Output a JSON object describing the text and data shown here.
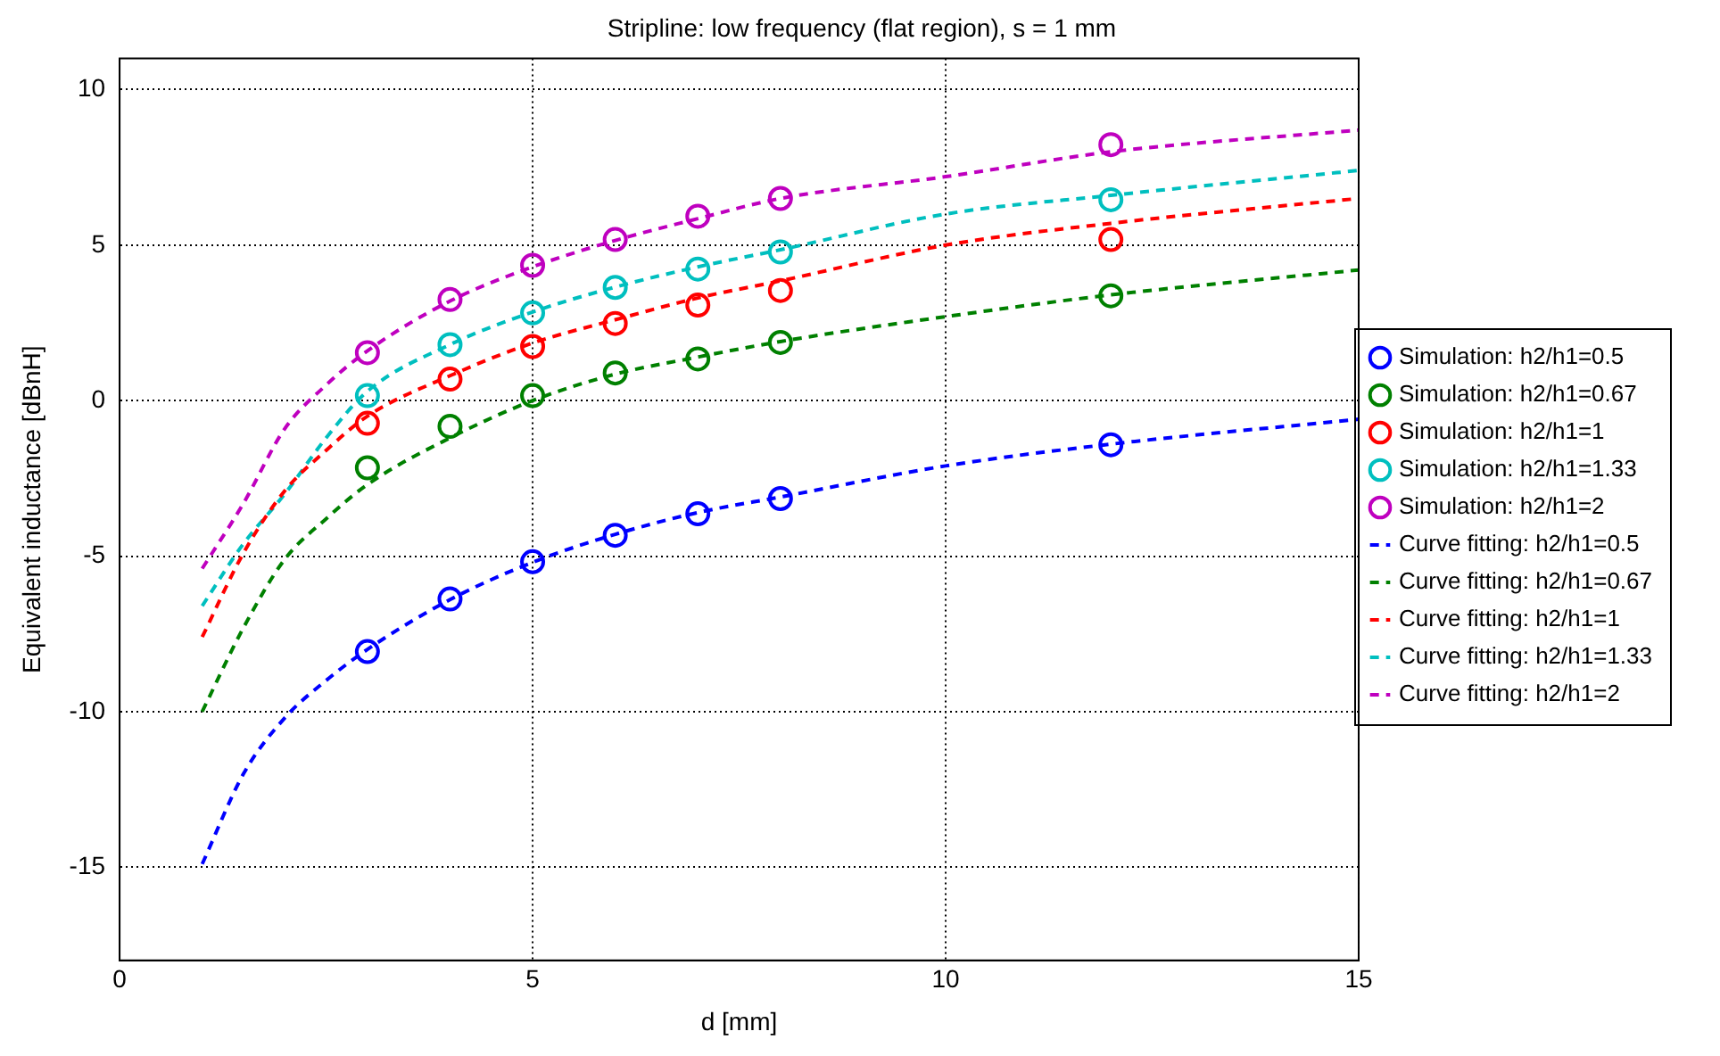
{
  "chart_data": {
    "type": "line",
    "title": "Stripline: low frequency (flat region), s = 1 mm",
    "xlabel": "d [mm]",
    "ylabel": "Equivalent inductance [dBnH]",
    "xlim": [
      0,
      15
    ],
    "xticks": [
      0,
      5,
      10,
      15
    ],
    "ylim": [
      -18,
      11
    ],
    "yticks": [
      -15,
      -10,
      -5,
      0,
      5,
      10
    ],
    "grid": true,
    "legend": "right",
    "series": [
      {
        "name": "Simulation: h2/h1=0.5",
        "type": "scatter",
        "marker": "circle",
        "color": "#0000ff",
        "x": [
          3,
          4,
          5,
          6,
          7,
          8,
          12
        ],
        "values": [
          -8.07,
          -6.38,
          -5.18,
          -4.33,
          -3.64,
          -3.15,
          -1.42
        ]
      },
      {
        "name": "Simulation: h2/h1=0.67",
        "type": "scatter",
        "marker": "circle",
        "color": "#008000",
        "x": [
          3,
          4,
          5,
          6,
          7,
          8,
          12
        ],
        "values": [
          -2.16,
          -0.83,
          0.16,
          0.89,
          1.34,
          1.87,
          3.37
        ]
      },
      {
        "name": "Simulation: h2/h1=1",
        "type": "scatter",
        "marker": "circle",
        "color": "#ff0000",
        "x": [
          3,
          4,
          5,
          6,
          7,
          8,
          12
        ],
        "values": [
          -0.73,
          0.69,
          1.74,
          2.48,
          3.07,
          3.54,
          5.18
        ]
      },
      {
        "name": "Simulation: h2/h1=1.33",
        "type": "scatter",
        "marker": "circle",
        "color": "#00bfbf",
        "x": [
          3,
          4,
          5,
          6,
          7,
          8,
          12
        ],
        "values": [
          0.16,
          1.8,
          2.82,
          3.64,
          4.23,
          4.78,
          6.46
        ]
      },
      {
        "name": "Simulation: h2/h1=2",
        "type": "scatter",
        "marker": "circle",
        "color": "#bf00bf",
        "x": [
          3,
          4,
          5,
          6,
          7,
          8,
          12
        ],
        "values": [
          1.54,
          3.25,
          4.35,
          5.18,
          5.93,
          6.5,
          8.23
        ]
      },
      {
        "name": "Curve fitting: h2/h1=0.5",
        "line_style": "dashed",
        "marker": "none",
        "color": "#0000ff",
        "x": [
          1,
          1.5,
          2,
          2.5,
          3,
          4,
          5,
          6,
          7,
          8,
          10,
          12,
          15
        ],
        "values": [
          -14.9,
          -12.0,
          -10.2,
          -9.0,
          -8.0,
          -6.4,
          -5.2,
          -4.3,
          -3.6,
          -3.1,
          -2.1,
          -1.4,
          -0.6
        ]
      },
      {
        "name": "Curve fitting: h2/h1=0.67",
        "line_style": "dashed",
        "marker": "none",
        "color": "#008000",
        "x": [
          1,
          1.5,
          2,
          2.5,
          3,
          4,
          5,
          6,
          7,
          8,
          10,
          12,
          15
        ],
        "values": [
          -10.0,
          -7.3,
          -5.1,
          -3.8,
          -2.7,
          -1.2,
          0.0,
          0.85,
          1.4,
          1.9,
          2.7,
          3.4,
          4.2
        ]
      },
      {
        "name": "Curve fitting: h2/h1=1",
        "line_style": "dashed",
        "marker": "none",
        "color": "#ff0000",
        "x": [
          1,
          1.5,
          2,
          2.5,
          3,
          4,
          5,
          6,
          7,
          8,
          10,
          12,
          15
        ],
        "values": [
          -7.6,
          -4.9,
          -2.9,
          -1.6,
          -0.5,
          0.8,
          1.85,
          2.6,
          3.3,
          3.85,
          5.0,
          5.7,
          6.5
        ]
      },
      {
        "name": "Curve fitting: h2/h1=1.33",
        "line_style": "dashed",
        "marker": "none",
        "color": "#00bfbf",
        "x": [
          1,
          1.5,
          2,
          2.5,
          3,
          4,
          5,
          6,
          7,
          8,
          10,
          12,
          15
        ],
        "values": [
          -6.6,
          -4.6,
          -3.0,
          -1.2,
          0.3,
          1.8,
          2.85,
          3.65,
          4.3,
          4.85,
          6.0,
          6.6,
          7.4
        ]
      },
      {
        "name": "Curve fitting: h2/h1=2",
        "line_style": "dashed",
        "marker": "none",
        "color": "#bf00bf",
        "x": [
          1,
          1.5,
          2,
          2.5,
          3,
          4,
          5,
          6,
          7,
          8,
          10,
          12,
          15
        ],
        "values": [
          -5.4,
          -3.3,
          -0.9,
          0.5,
          1.6,
          3.2,
          4.3,
          5.15,
          5.85,
          6.5,
          7.2,
          8.0,
          8.7
        ]
      }
    ]
  }
}
